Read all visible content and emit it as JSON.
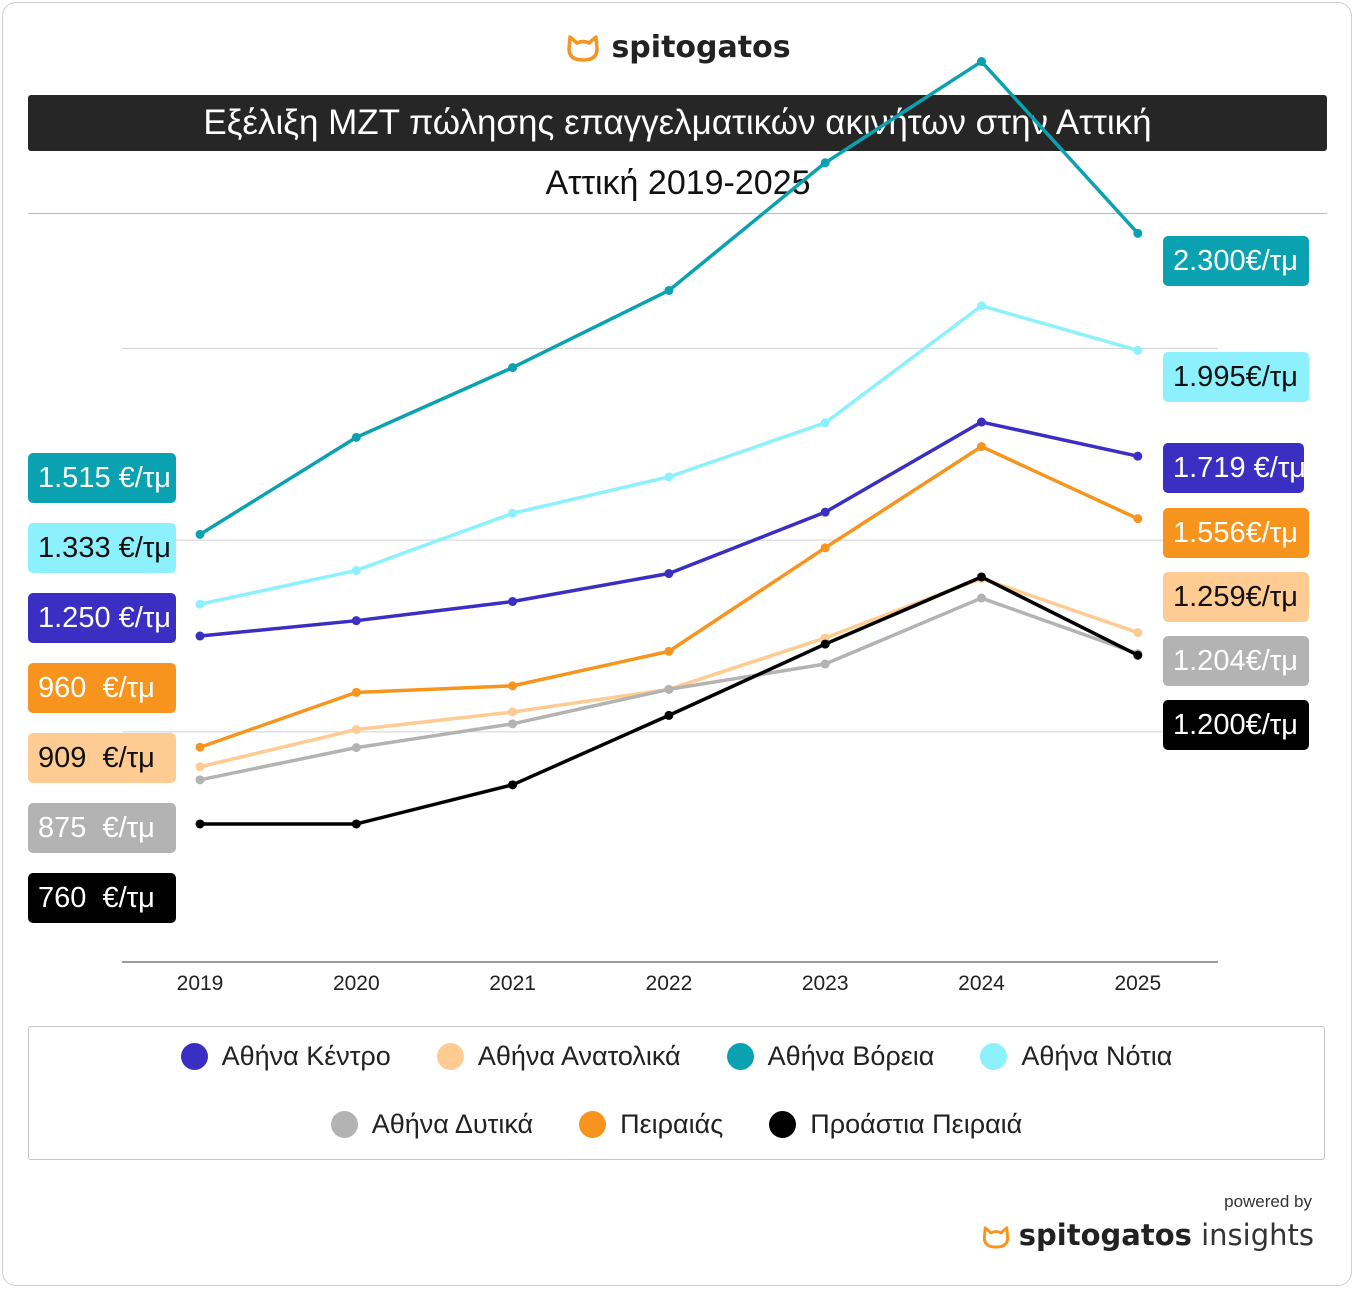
{
  "brand": {
    "name": "spitogatos",
    "icon": "cat-icon",
    "color": "#f7941d"
  },
  "header": {
    "title": "Εξέλιξη ΜΖΤ πώλησης επαγγελματικών ακινήτων στην Αττική",
    "subtitle": "Αττική 2019-2025"
  },
  "chart_data": {
    "type": "line",
    "title": "Εξέλιξη ΜΖΤ πώλησης επαγγελματικών ακινήτων στην Αττική",
    "subtitle": "Αττική 2019-2025",
    "x": [
      "2019",
      "2020",
      "2021",
      "2022",
      "2023",
      "2024",
      "2025"
    ],
    "ylim": [
      400,
      2400
    ],
    "grid": "horizontal",
    "legend_position": "bottom",
    "series": [
      {
        "name": "Αθήνα Κέντρο",
        "color": "#3a2fc2",
        "values": [
          1250,
          1290,
          1340,
          1413,
          1573,
          1808,
          1719
        ],
        "start_label": "1.250 €/τμ",
        "end_label": "1.719 €/τμ"
      },
      {
        "name": "Αθήνα Ανατολικά",
        "color": "#fecc92",
        "values": [
          909,
          1006,
          1052,
          1111,
          1245,
          1400,
          1259
        ],
        "start_label": "909  €/τμ",
        "end_label": "1.259€/τμ"
      },
      {
        "name": "Αθήνα Βόρεια",
        "color": "#0aa2b0",
        "values": [
          1515,
          1768,
          1950,
          2151,
          2484,
          2748,
          2300
        ],
        "start_label": "1.515 €/τμ",
        "end_label": "2.300€/τμ"
      },
      {
        "name": "Αθήνα Νότια",
        "color": "#8cf1fc",
        "values": [
          1333,
          1421,
          1570,
          1665,
          1806,
          2111,
          1995
        ],
        "start_label": "1.333 €/τμ",
        "end_label": "1.995€/τμ"
      },
      {
        "name": "Αθήνα Δυτικά",
        "color": "#b3b3b3",
        "values": [
          875,
          959,
          1021,
          1111,
          1177,
          1349,
          1204
        ],
        "start_label": "875  €/τμ",
        "end_label": "1.204€/τμ"
      },
      {
        "name": "Πειραιάς",
        "color": "#f7941d",
        "values": [
          960,
          1103,
          1120,
          1210,
          1480,
          1744,
          1556
        ],
        "start_label": "960  €/τμ",
        "end_label": "1.556€/τμ"
      },
      {
        "name": "Προάστια Πειραιά",
        "color": "#000000",
        "values": [
          760,
          760,
          862,
          1043,
          1229,
          1404,
          1200
        ],
        "start_label": "760  €/τμ",
        "end_label": "1.200€/τμ"
      }
    ]
  },
  "footer": {
    "powered_by": "powered by",
    "brand": "spitogatos",
    "suffix": "insights"
  }
}
